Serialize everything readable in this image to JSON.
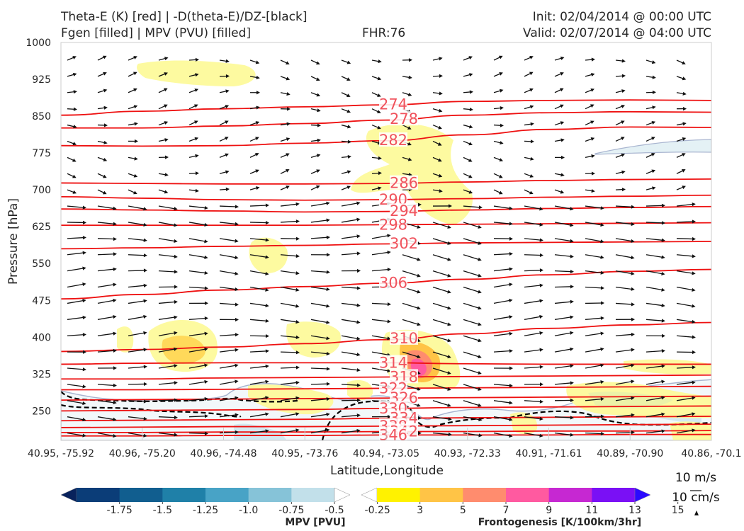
{
  "header": {
    "title_line1": "Theta-E (K) [red] | -D(theta-E)/DZ-[black]",
    "title_line2": "Fgen [filled] | MPV (PVU) [filled]",
    "fhr": "FHR:76",
    "init": "Init: 02/04/2014 @ 00:00 UTC",
    "valid": "Valid: 02/07/2014 @ 04:00 UTC"
  },
  "chart_data": {
    "type": "cross-section",
    "xlabel": "Latitude,Longitude",
    "ylabel": "Pressure [hPa]",
    "x_ticks": [
      "40.95, -75.92",
      "40.96, -75.20",
      "40.96, -74.48",
      "40.95, -73.76",
      "40.94, -73.05",
      "40.93, -72.33",
      "40.91, -71.61",
      "40.89, -70.90",
      "40.86, -70.1"
    ],
    "y_ticks": [
      250,
      325,
      400,
      475,
      550,
      625,
      700,
      775,
      850,
      925,
      1000
    ],
    "ylim": [
      1000,
      190
    ],
    "grid": false,
    "theta_e_contours": [
      {
        "label": "274",
        "p": [
          852,
          860,
          865,
          869,
          873,
          880,
          882,
          883,
          882
        ]
      },
      {
        "label": "278",
        "p": [
          826,
          826,
          830,
          835,
          842,
          852,
          857,
          859,
          858
        ]
      },
      {
        "label": "282",
        "p": [
          790,
          789,
          790,
          795,
          800,
          812,
          823,
          828,
          827
        ]
      },
      {
        "label": "286",
        "p": [
          714,
          713,
          712,
          712,
          713,
          716,
          719,
          721,
          722
        ]
      },
      {
        "label": "290",
        "p": [
          686,
          683,
          680,
          679,
          680,
          682,
          685,
          687,
          689
        ]
      },
      {
        "label": "294",
        "p": [
          661,
          659,
          657,
          655,
          656,
          659,
          662,
          664,
          666
        ]
      },
      {
        "label": "298",
        "p": [
          628,
          628,
          628,
          628,
          629,
          630,
          631,
          632,
          633
        ]
      },
      {
        "label": "302",
        "p": [
          580,
          582,
          585,
          587,
          590,
          592,
          593,
          594,
          595
        ]
      },
      {
        "label": "306",
        "p": [
          478,
          487,
          496,
          503,
          510,
          518,
          527,
          534,
          538
        ]
      },
      {
        "label": "310",
        "p": [
          371,
          375,
          380,
          387,
          395,
          407,
          418,
          425,
          430
        ]
      },
      {
        "label": "314",
        "p": [
          345,
          347,
          348,
          348,
          348,
          346,
          345,
          345,
          345
        ]
      },
      {
        "label": "318",
        "p": [
          315,
          315,
          317,
          318,
          319,
          320,
          321,
          322,
          323
        ]
      },
      {
        "label": "322",
        "p": [
          293,
          293,
          294,
          295,
          296,
          297,
          298,
          299,
          300
        ]
      },
      {
        "label": "326",
        "p": [
          272,
          273,
          274,
          275,
          276,
          277,
          278,
          279,
          280
        ]
      },
      {
        "label": "330",
        "p": [
          250,
          251,
          252,
          253,
          255,
          257,
          258,
          259,
          260
        ]
      },
      {
        "label": "334",
        "p": [
          230,
          231,
          232,
          233,
          235,
          236,
          237,
          238,
          239
        ]
      },
      {
        "label": "338",
        "p": [
          216,
          217,
          218,
          218,
          219,
          220,
          221,
          222,
          223
        ]
      },
      {
        "label": "342",
        "p": [
          206,
          206,
          207,
          207,
          208,
          208,
          209,
          209,
          210
        ]
      },
      {
        "label": "346",
        "p": [
          199,
          199,
          200,
          200,
          201,
          201,
          201,
          202,
          202
        ]
      }
    ],
    "mpv_colorbar": {
      "label": "MPV [PVU]",
      "ticks": [
        "-1.75",
        "-1.5",
        "-1.25",
        "-1.0",
        "-0.75",
        "-0.5",
        "-0.25"
      ],
      "colors": [
        "#08225c",
        "#0b3d78",
        "#115e8f",
        "#1f80a8",
        "#48a3c6",
        "#86c3d8",
        "#c2e0ea",
        "#ffffff"
      ]
    },
    "fgen_colorbar": {
      "label": "Frontogenesis [K/100km/3hr]",
      "ticks": [
        "3",
        "5",
        "7",
        "9",
        "11",
        "13",
        "15"
      ],
      "colors": [
        "#ffffff",
        "#fff200",
        "#ffc446",
        "#ff8c6e",
        "#ff5aa0",
        "#c628d2",
        "#7a10f5",
        "#2a0aff"
      ]
    },
    "reference_vectors": {
      "horizontal": "10 m/s",
      "vertical": "10 cm/s"
    }
  }
}
